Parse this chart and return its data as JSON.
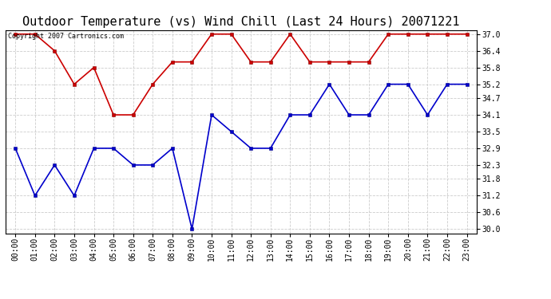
{
  "title": "Outdoor Temperature (vs) Wind Chill (Last 24 Hours) 20071221",
  "copyright_text": "Copyright 2007 Cartronics.com",
  "x_labels": [
    "00:00",
    "01:00",
    "02:00",
    "03:00",
    "04:00",
    "05:00",
    "06:00",
    "07:00",
    "08:00",
    "09:00",
    "10:00",
    "11:00",
    "12:00",
    "13:00",
    "14:00",
    "15:00",
    "16:00",
    "17:00",
    "18:00",
    "19:00",
    "20:00",
    "21:00",
    "22:00",
    "23:00"
  ],
  "y_ticks": [
    30.0,
    30.6,
    31.2,
    31.8,
    32.3,
    32.9,
    33.5,
    34.1,
    34.7,
    35.2,
    35.8,
    36.4,
    37.0
  ],
  "ylim": [
    29.85,
    37.15
  ],
  "temp_data": [
    37.0,
    37.0,
    36.4,
    35.2,
    35.8,
    34.1,
    34.1,
    35.2,
    36.0,
    36.0,
    37.0,
    37.0,
    36.0,
    36.0,
    37.0,
    36.0,
    36.0,
    36.0,
    36.0,
    37.0,
    37.0,
    37.0,
    37.0,
    37.0
  ],
  "wind_chill_data": [
    32.9,
    31.2,
    32.3,
    31.2,
    32.9,
    32.9,
    32.3,
    32.3,
    32.9,
    30.0,
    34.1,
    33.5,
    32.9,
    32.9,
    34.1,
    34.1,
    35.2,
    34.1,
    34.1,
    35.2,
    35.2,
    34.1,
    35.2,
    35.2
  ],
  "temp_color": "#cc0000",
  "wind_chill_color": "#0000cc",
  "grid_color": "#cccccc",
  "bg_color": "#ffffff",
  "title_fontsize": 11,
  "tick_fontsize": 7,
  "copyright_fontsize": 6,
  "marker": "s",
  "marker_size": 3,
  "linewidth": 1.2
}
